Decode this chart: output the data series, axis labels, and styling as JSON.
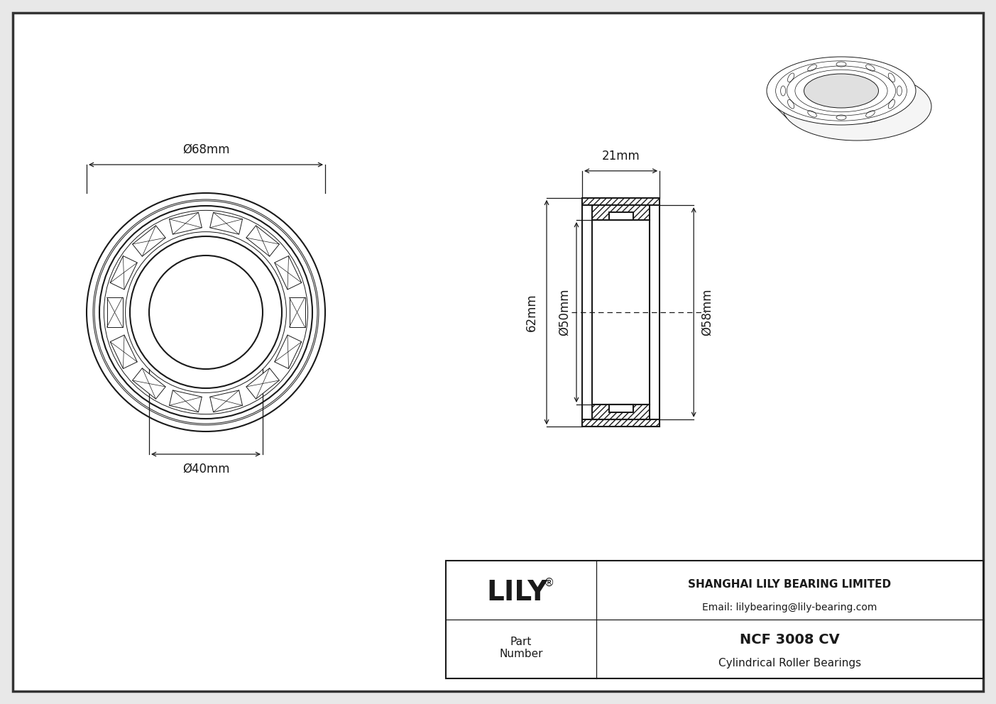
{
  "title": "NCF 3008 CV",
  "subtitle": "Cylindrical Roller Bearings",
  "company": "SHANGHAI LILY BEARING LIMITED",
  "email": "Email: lilybearing@lily-bearing.com",
  "part_label": "Part\nNumber",
  "logo": "LILY",
  "logo_reg": "®",
  "bg_color": "#e8e8e8",
  "line_color": "#1a1a1a",
  "dim_d_outer": "68mm",
  "dim_d_inner": "40mm",
  "dim_width": "21mm",
  "dim_height": "62mm",
  "dim_d_bore": "50mm",
  "dim_d_groove": "58mm",
  "n_rollers": 14,
  "scale": 5.2
}
